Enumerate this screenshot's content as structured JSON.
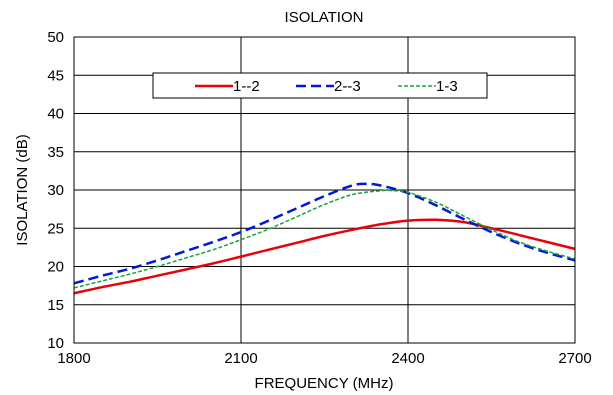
{
  "chart_data": {
    "type": "line",
    "title": "ISOLATION",
    "xlabel": "FREQUENCY (MHz)",
    "ylabel": "ISOLATION (dB)",
    "xlim": [
      1800,
      2700
    ],
    "ylim": [
      10,
      50
    ],
    "xticks": [
      1800,
      2100,
      2400,
      2700
    ],
    "yticks": [
      10,
      15,
      20,
      25,
      30,
      35,
      40,
      45,
      50
    ],
    "grid": true,
    "legend_position": "top",
    "series": [
      {
        "name": "1--2",
        "color": "#e8000b",
        "style": "solid",
        "x": [
          1800,
          1850,
          1900,
          1950,
          2000,
          2050,
          2100,
          2150,
          2200,
          2250,
          2300,
          2350,
          2400,
          2450,
          2500,
          2550,
          2600,
          2650,
          2700
        ],
        "y": [
          16.5,
          17.3,
          18.0,
          18.8,
          19.6,
          20.4,
          21.3,
          22.2,
          23.1,
          24.0,
          24.8,
          25.5,
          26.0,
          26.1,
          25.8,
          25.0,
          24.1,
          23.2,
          22.3
        ]
      },
      {
        "name": "2--3",
        "color": "#0019d9",
        "style": "dashed",
        "x": [
          1800,
          1850,
          1900,
          1950,
          2000,
          2050,
          2100,
          2150,
          2200,
          2250,
          2300,
          2325,
          2350,
          2400,
          2450,
          2500,
          2550,
          2600,
          2650,
          2700
        ],
        "y": [
          17.8,
          18.8,
          19.7,
          20.8,
          22.0,
          23.2,
          24.5,
          26.0,
          27.6,
          29.2,
          30.6,
          30.8,
          30.6,
          29.6,
          28.0,
          26.2,
          24.5,
          23.0,
          21.8,
          20.8
        ]
      },
      {
        "name": "1-3",
        "color": "#1aa336",
        "style": "dotted",
        "x": [
          1800,
          1850,
          1900,
          1950,
          2000,
          2050,
          2100,
          2150,
          2200,
          2250,
          2300,
          2350,
          2375,
          2400,
          2450,
          2500,
          2550,
          2600,
          2650,
          2700
        ],
        "y": [
          17.2,
          18.1,
          19.0,
          20.0,
          21.1,
          22.2,
          23.5,
          24.9,
          26.5,
          28.1,
          29.4,
          29.9,
          29.9,
          29.7,
          28.4,
          26.6,
          24.8,
          23.2,
          22.0,
          21.0
        ]
      }
    ]
  }
}
